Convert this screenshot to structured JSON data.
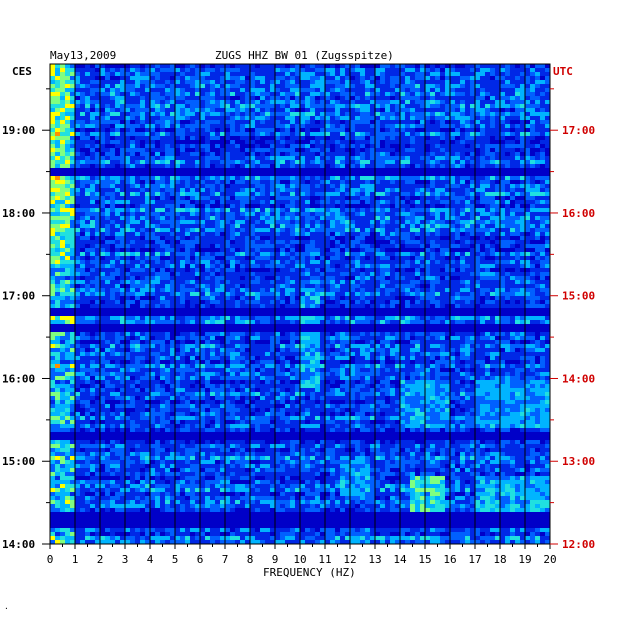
{
  "chart_data": {
    "type": "heatmap",
    "date": "May13,2009",
    "title": "ZUGS HHZ BW 01 (Zugsspitze)",
    "left_axis_label": "CES",
    "right_axis_label": "UTC",
    "xlabel": "FREQUENCY (HZ)",
    "xlim": [
      0,
      20
    ],
    "x_ticks": [
      "0",
      "1",
      "2",
      "3",
      "4",
      "5",
      "6",
      "7",
      "8",
      "9",
      "10",
      "11",
      "12",
      "13",
      "14",
      "15",
      "16",
      "17",
      "18",
      "19",
      "20"
    ],
    "left_time_ticks": [
      {
        "label": "19:00",
        "hour": 19
      },
      {
        "label": "18:00",
        "hour": 18
      },
      {
        "label": "17:00",
        "hour": 17
      },
      {
        "label": "16:00",
        "hour": 16
      },
      {
        "label": "15:00",
        "hour": 15
      },
      {
        "label": "14:00",
        "hour": 14
      }
    ],
    "right_time_ticks": [
      {
        "label": "17:00",
        "hour": 17
      },
      {
        "label": "16:00",
        "hour": 16
      },
      {
        "label": "15:00",
        "hour": 15
      },
      {
        "label": "14:00",
        "hour": 14
      },
      {
        "label": "13:00",
        "hour": 13
      },
      {
        "label": "12:00",
        "hour": 12
      }
    ],
    "left_time_range": [
      14.0,
      19.8
    ],
    "right_time_range": [
      12.0,
      17.8
    ],
    "colors": {
      "background": "#0000c8",
      "low": "#0028e6",
      "mid": "#00b4ff",
      "high": "#ffff00",
      "peak": "#ff0000",
      "utc_label": "#d00000"
    },
    "noise_gaps_hours": [
      18.48,
      16.82,
      16.6,
      15.3,
      14.35,
      14.22
    ],
    "energy_bands": [
      {
        "f": [
          0,
          0.8
        ],
        "t": [
          17.4,
          19.8
        ],
        "level": 0.75
      },
      {
        "f": [
          10,
          10.8
        ],
        "t": [
          15.9,
          17.0
        ],
        "level": 0.6
      },
      {
        "f": [
          11.6,
          12.8
        ],
        "t": [
          14.6,
          15.0
        ],
        "level": 0.55
      },
      {
        "f": [
          14,
          16
        ],
        "t": [
          15.4,
          16.0
        ],
        "level": 0.55
      },
      {
        "f": [
          17,
          20
        ],
        "t": [
          15.4,
          16.0
        ],
        "level": 0.55
      },
      {
        "f": [
          14.5,
          15.8
        ],
        "t": [
          14.3,
          14.8
        ],
        "level": 0.7
      },
      {
        "f": [
          17,
          20
        ],
        "t": [
          14.3,
          14.8
        ],
        "level": 0.6
      },
      {
        "f": [
          14,
          20
        ],
        "t": [
          16.6,
          16.62
        ],
        "level": 0.95
      }
    ]
  }
}
